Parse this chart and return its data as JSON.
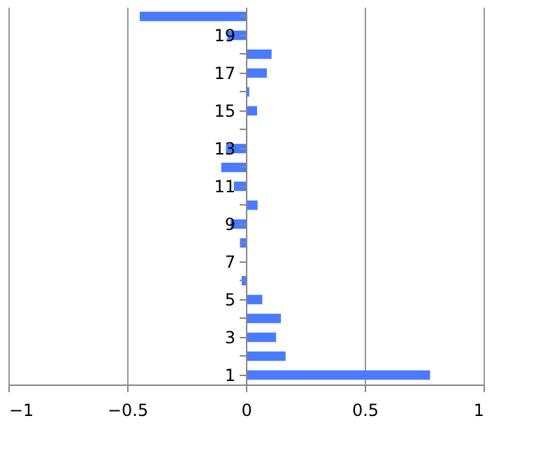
{
  "chart_data": {
    "type": "bar",
    "orientation": "horizontal",
    "categories": [
      null,
      "19",
      null,
      "17",
      null,
      "15",
      null,
      "13",
      null,
      "11",
      null,
      "9",
      null,
      "7",
      null,
      "5",
      null,
      "3",
      null,
      "1"
    ],
    "values": [
      -0.447,
      -0.078,
      0.108,
      0.088,
      0.014,
      0.047,
      0,
      -0.084,
      -0.104,
      -0.051,
      0.049,
      -0.065,
      -0.025,
      0,
      -0.018,
      0.069,
      0.147,
      0.127,
      0.167,
      0.775
    ],
    "color": "#4a7bff",
    "xlim": [
      -1,
      1
    ],
    "xticks": [
      -1,
      -0.5,
      0,
      0.5,
      1
    ],
    "grid": "x"
  }
}
